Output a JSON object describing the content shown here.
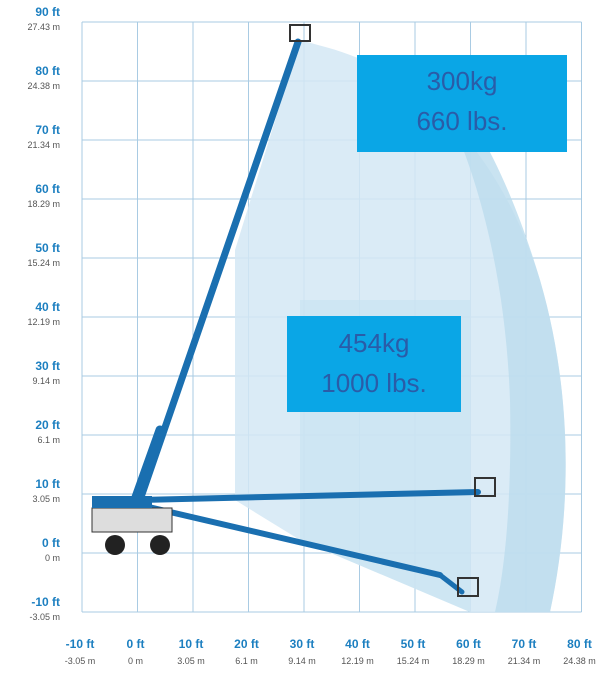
{
  "y_axis": [
    {
      "ft": "90 ft",
      "m": "27.43 m"
    },
    {
      "ft": "80 ft",
      "m": "24.38 m"
    },
    {
      "ft": "70 ft",
      "m": "21.34 m"
    },
    {
      "ft": "60 ft",
      "m": "18.29 m"
    },
    {
      "ft": "50 ft",
      "m": "15.24 m"
    },
    {
      "ft": "40 ft",
      "m": "12.19 m"
    },
    {
      "ft": "30 ft",
      "m": "9.14 m"
    },
    {
      "ft": "20 ft",
      "m": "6.1 m"
    },
    {
      "ft": "10 ft",
      "m": "3.05 m"
    },
    {
      "ft": "0 ft",
      "m": "0 m"
    },
    {
      "ft": "-10 ft",
      "m": "-3.05 m"
    }
  ],
  "x_axis": [
    {
      "ft": "-10 ft",
      "m": "-3.05 m"
    },
    {
      "ft": "0 ft",
      "m": "0 m"
    },
    {
      "ft": "10 ft",
      "m": "3.05 m"
    },
    {
      "ft": "20 ft",
      "m": "6.1 m"
    },
    {
      "ft": "30 ft",
      "m": "9.14 m"
    },
    {
      "ft": "40 ft",
      "m": "12.19 m"
    },
    {
      "ft": "50 ft",
      "m": "15.24 m"
    },
    {
      "ft": "60 ft",
      "m": "18.29 m"
    },
    {
      "ft": "70 ft",
      "m": "21.34 m"
    },
    {
      "ft": "80 ft",
      "m": "24.38 m"
    }
  ],
  "capacity_boxes": [
    {
      "kg": "300kg",
      "lbs": "660 lbs."
    },
    {
      "kg": "454kg",
      "lbs": "1000 lbs."
    }
  ]
}
